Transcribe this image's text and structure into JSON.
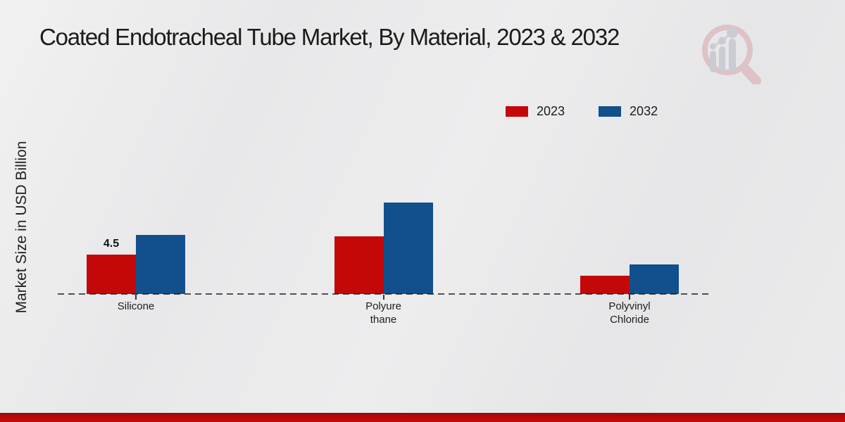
{
  "header": {
    "title": "Coated Endotracheal Tube Market, By Material, 2023 & 2032"
  },
  "y_axis": {
    "label": "Market Size in USD Billion"
  },
  "legend": {
    "position": "top-right",
    "items": [
      {
        "label": "2023",
        "color": "#c40708"
      },
      {
        "label": "2032",
        "color": "#11508c"
      }
    ]
  },
  "chart_data": {
    "type": "bar",
    "title": "Coated Endotracheal Tube Market, By Material, 2023 & 2032",
    "xlabel": "",
    "ylabel": "Market Size in USD Billion",
    "categories": [
      "Silicone",
      "Polyurethane",
      "Polyvinyl Chloride"
    ],
    "category_display_lines": [
      [
        "Silicone"
      ],
      [
        "Polyure",
        "thane"
      ],
      [
        "Polyvinyl",
        "Chloride"
      ]
    ],
    "series": [
      {
        "name": "2023",
        "color": "#c40708",
        "values": [
          4.5,
          6.6,
          2.1
        ]
      },
      {
        "name": "2032",
        "color": "#11508c",
        "values": [
          6.8,
          10.5,
          3.4
        ]
      }
    ],
    "data_labels": [
      {
        "category": "Silicone",
        "series": "2023",
        "text": "4.5"
      }
    ],
    "ylim": [
      0,
      12
    ],
    "grid": false,
    "baseline_style": "dashed",
    "legend_position": "top-right"
  },
  "footer": {
    "band_color": "#c40707"
  },
  "watermark": {
    "name": "market-research-magnifier-logo",
    "ring_color": "#ddbcc0",
    "bars_color": "#c7c8cd"
  }
}
